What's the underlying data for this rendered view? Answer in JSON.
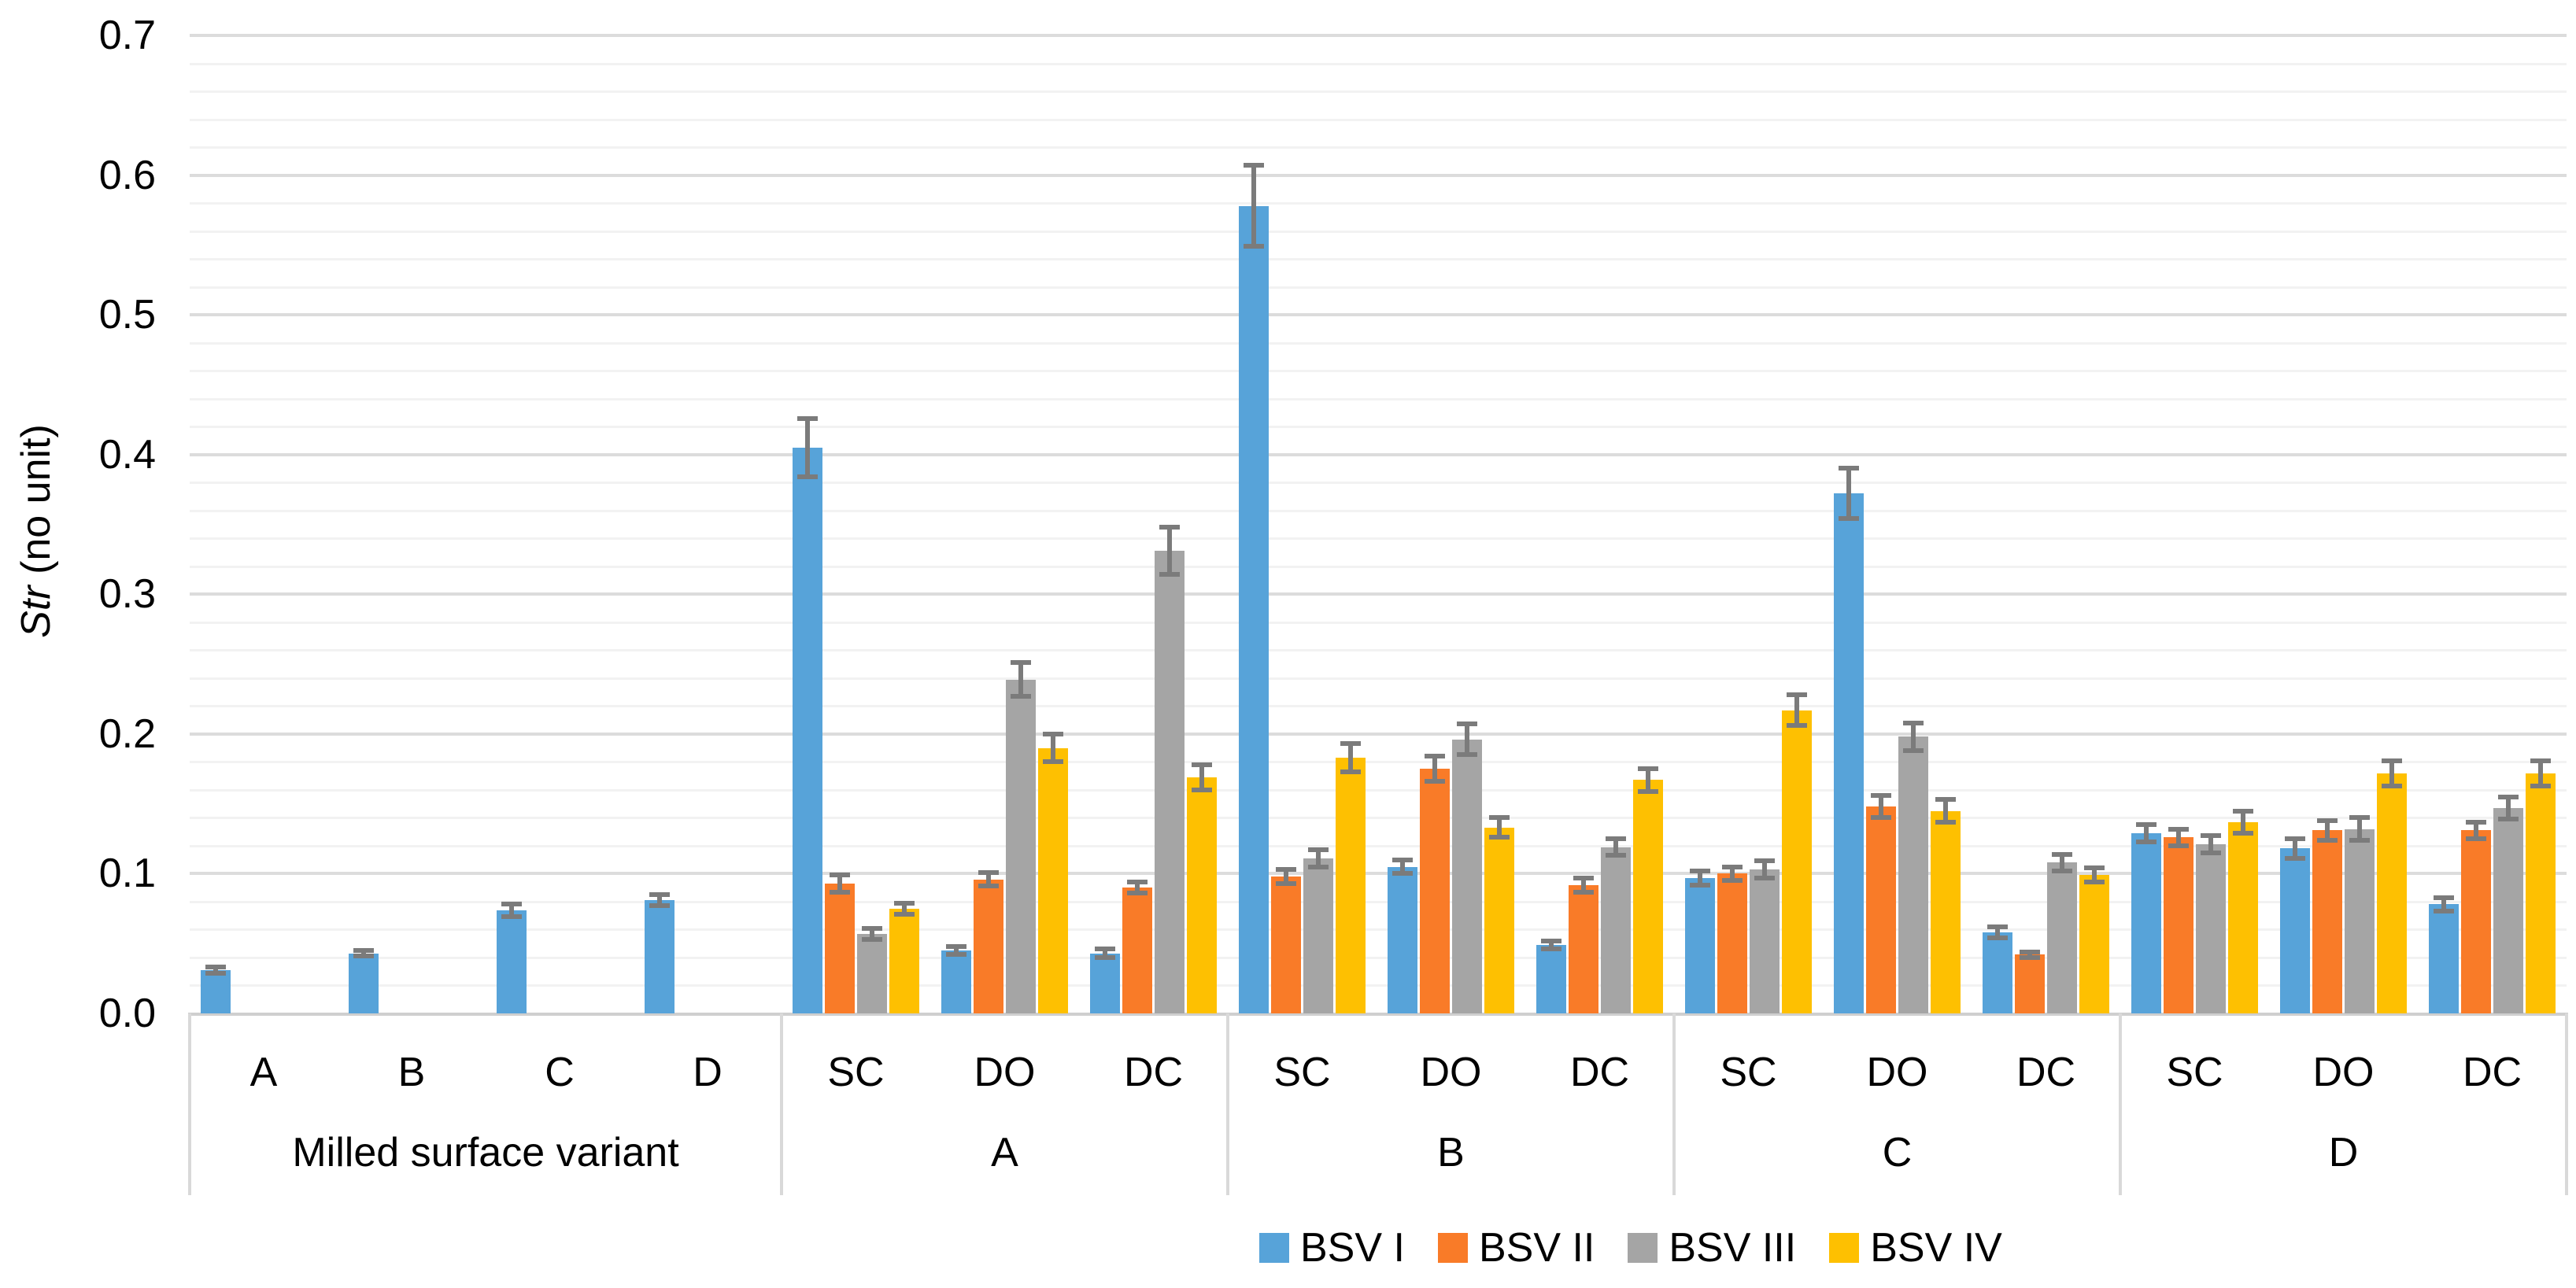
{
  "chart_data": {
    "type": "bar",
    "title": "",
    "ylabel": "Str (no unit)",
    "ylabel_parts": {
      "italic": "Str",
      "rest": " (no unit)"
    },
    "xlabel": "",
    "ylim": [
      0,
      0.7
    ],
    "ytick_step": 0.1,
    "minor_grid_step": 0.02,
    "grid": "horizontal",
    "yticks": [
      "0.0",
      "0.1",
      "0.2",
      "0.3",
      "0.4",
      "0.5",
      "0.6",
      "0.7"
    ],
    "legend_position": "bottom",
    "series_names": [
      "BSV I",
      "BSV II",
      "BSV III",
      "BSV IV"
    ],
    "series_colors": [
      "#57A3D9",
      "#F97B28",
      "#A5A5A5",
      "#FEC001"
    ],
    "error_bar_color": "#7b7b7b",
    "groups": [
      {
        "label": "Milled surface variant",
        "clusters": [
          {
            "label": "A",
            "values": [
              0.031,
              null,
              null,
              null
            ],
            "errors": [
              0.002,
              null,
              null,
              null
            ]
          },
          {
            "label": "B",
            "values": [
              0.043,
              null,
              null,
              null
            ],
            "errors": [
              0.002,
              null,
              null,
              null
            ]
          },
          {
            "label": "C",
            "values": [
              0.074,
              null,
              null,
              null
            ],
            "errors": [
              0.0045,
              null,
              null,
              null
            ]
          },
          {
            "label": "D",
            "values": [
              0.081,
              null,
              null,
              null
            ],
            "errors": [
              0.004,
              null,
              null,
              null
            ]
          }
        ]
      },
      {
        "label": "A",
        "clusters": [
          {
            "label": "SC",
            "values": [
              0.405,
              0.093,
              0.057,
              0.075
            ],
            "errors": [
              0.021,
              0.006,
              0.004,
              0.004
            ]
          },
          {
            "label": "DO",
            "values": [
              0.045,
              0.096,
              0.239,
              0.19
            ],
            "errors": [
              0.003,
              0.005,
              0.012,
              0.01
            ]
          },
          {
            "label": "DC",
            "values": [
              0.043,
              0.09,
              0.331,
              0.169
            ],
            "errors": [
              0.003,
              0.004,
              0.017,
              0.009
            ]
          }
        ]
      },
      {
        "label": "B",
        "clusters": [
          {
            "label": "SC",
            "values": [
              0.578,
              0.098,
              0.111,
              0.183
            ],
            "errors": [
              0.029,
              0.005,
              0.006,
              0.01
            ]
          },
          {
            "label": "DO",
            "values": [
              0.105,
              0.175,
              0.196,
              0.133
            ],
            "errors": [
              0.005,
              0.009,
              0.011,
              0.007
            ]
          },
          {
            "label": "DC",
            "values": [
              0.049,
              0.092,
              0.119,
              0.167
            ],
            "errors": [
              0.003,
              0.005,
              0.006,
              0.008
            ]
          }
        ]
      },
      {
        "label": "C",
        "clusters": [
          {
            "label": "SC",
            "values": [
              0.097,
              0.1,
              0.103,
              0.217
            ],
            "errors": [
              0.005,
              0.005,
              0.006,
              0.011
            ]
          },
          {
            "label": "DO",
            "values": [
              0.372,
              0.148,
              0.198,
              0.145
            ],
            "errors": [
              0.018,
              0.008,
              0.01,
              0.008
            ]
          },
          {
            "label": "DC",
            "values": [
              0.058,
              0.042,
              0.108,
              0.099
            ],
            "errors": [
              0.004,
              0.002,
              0.006,
              0.005
            ]
          }
        ]
      },
      {
        "label": "D",
        "clusters": [
          {
            "label": "SC",
            "values": [
              0.129,
              0.126,
              0.121,
              0.137
            ],
            "errors": [
              0.006,
              0.006,
              0.006,
              0.008
            ]
          },
          {
            "label": "DO",
            "values": [
              0.118,
              0.131,
              0.132,
              0.172
            ],
            "errors": [
              0.007,
              0.007,
              0.008,
              0.009
            ]
          },
          {
            "label": "DC",
            "values": [
              0.078,
              0.131,
              0.147,
              0.172
            ],
            "errors": [
              0.005,
              0.006,
              0.008,
              0.009
            ]
          }
        ]
      }
    ]
  }
}
